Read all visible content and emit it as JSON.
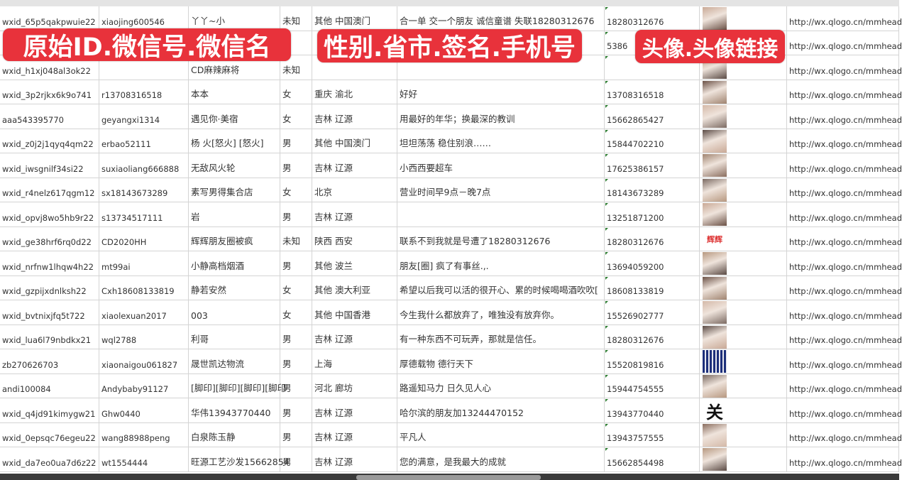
{
  "overlay_labels": [
    "原始ID.微信号.微信名",
    "性别.省市.签名.手机号",
    "头像.头像链接"
  ],
  "colors": {
    "overlay": "#e8323b",
    "grid": "#d4d4d4",
    "comment_marker": "#2e7d32"
  },
  "rows": [
    {
      "id": "wxid_65p5qakpwuie22",
      "wechat": "xiaojing600546",
      "name": "丫丫~小",
      "gender": "未知",
      "region": "其他 中国澳门",
      "signature": "合一单 交一个朋友 诚信童谱 失联18280312676",
      "phone": "18280312676",
      "avatar": "avatar-photo",
      "url": "http://wx.qlogo.cn/mmhead"
    },
    {
      "id": "",
      "wechat": "",
      "name": "",
      "gender": "",
      "region": "",
      "signature": "",
      "phone": "5386",
      "avatar": "avatar-photo",
      "url": "http://wx.qlogo.cn/mmhead"
    },
    {
      "id": "wxid_h1xj048al3ok22",
      "wechat": "",
      "name": "CD麻辣麻将",
      "gender": "未知",
      "region": "",
      "signature": "",
      "phone": "",
      "avatar": "avatar-photo",
      "url": "http://wx.qlogo.cn/mmhead"
    },
    {
      "id": "wxid_3p2rjkx6k9o741",
      "wechat": "r13708316518",
      "name": "本本",
      "gender": "女",
      "region": "重庆 渝北",
      "signature": "好好",
      "phone": "13708316518",
      "avatar": "avatar-photo",
      "url": "http://wx.qlogo.cn/mmhead"
    },
    {
      "id": "aaa543395770",
      "wechat": "geyangxi1314",
      "name": "遇见你·美宿",
      "gender": "女",
      "region": "吉林 辽源",
      "signature": "用最好的年华；换最深的教训",
      "phone": "15662865427",
      "avatar": "avatar-photo",
      "url": "http://wx.qlogo.cn/mmhead"
    },
    {
      "id": "wxid_z0j2j1qyq4qm22",
      "wechat": "erbao52111",
      "name": "杨 火[怒火] [怒火]",
      "gender": "男",
      "region": "其他 中国澳门",
      "signature": "坦坦荡荡 稳住别浪……",
      "phone": "15844702210",
      "avatar": "avatar-photo",
      "url": "http://wx.qlogo.cn/mmhead"
    },
    {
      "id": "wxid_iwsgnilf34si22",
      "wechat": "suxiaoliang666888",
      "name": "无敌风火轮",
      "gender": "男",
      "region": "吉林 辽源",
      "signature": "小西西要超车",
      "phone": "17625386157",
      "avatar": "avatar-photo",
      "url": "http://wx.qlogo.cn/mmhead"
    },
    {
      "id": "wxid_r4nelz617qgm12",
      "wechat": "sx18143673289",
      "name": "素写男得集合店",
      "gender": "女",
      "region": "北京",
      "signature": "营业时间早9点－晚7点",
      "phone": "18143673289",
      "avatar": "avatar-photo",
      "url": "http://wx.qlogo.cn/mmhead"
    },
    {
      "id": "wxid_opvj8wo5hb9r22",
      "wechat": "s13734517111",
      "name": "岩",
      "gender": "男",
      "region": "吉林 辽源",
      "signature": "",
      "phone": "13251871200",
      "avatar": "avatar-photo",
      "url": "http://wx.qlogo.cn/mmhead"
    },
    {
      "id": "wxid_ge38hrf6rq0d22",
      "wechat": "CD2020HH",
      "name": "辉辉朋友圈被疯",
      "gender": "未知",
      "region": "陕西 西安",
      "signature": "联系不到我就是号遭了18280312676",
      "phone": "18280312676",
      "avatar": "avatar-text-辉辉",
      "url": "http://wx.qlogo.cn/mmhead"
    },
    {
      "id": "wxid_nrfnw1lhqw4h22",
      "wechat": "mt99ai",
      "name": "小静高档烟酒",
      "gender": "男",
      "region": "其他 波兰",
      "signature": "朋友[圈] 疯了有事丝.,.",
      "phone": "13694059200",
      "avatar": "avatar-photo",
      "url": "http://wx.qlogo.cn/mmhead"
    },
    {
      "id": "wxid_gzpijxdnlksh22",
      "wechat": "Cxh18608133819",
      "name": "静若安然",
      "gender": "女",
      "region": "其他 澳大利亚",
      "signature": "希望以后我可以活的很开心、累的时候喝喝酒吹吹[",
      "phone": "18608133819",
      "avatar": "avatar-photo",
      "url": "http://wx.qlogo.cn/mmhead"
    },
    {
      "id": "wxid_bvtnixjfq5t722",
      "wechat": "xiaolexuan2017",
      "name": "003",
      "gender": "女",
      "region": "其他 中国香港",
      "signature": "今生我什么都放弃了，唯独没有放弃你。",
      "phone": "15526902777",
      "avatar": "avatar-photo",
      "url": "http://wx.qlogo.cn/mmhead"
    },
    {
      "id": "wxid_lua6l79nbdkx21",
      "wechat": "wql2788",
      "name": "利哥",
      "gender": "男",
      "region": "吉林 辽源",
      "signature": "有一种东西不可玩弄，那就是信任。",
      "phone": "18280312676",
      "avatar": "avatar-photo",
      "url": "http://wx.qlogo.cn/mmhead"
    },
    {
      "id": "zb270626703",
      "wechat": "xiaonaigou061827",
      "name": "晟世凯达物流",
      "gender": "男",
      "region": "上海",
      "signature": "厚德载物 德行天下",
      "phone": "15520819816",
      "avatar": "avatar-qrcode",
      "url": "http://wx.qlogo.cn/mmhead"
    },
    {
      "id": "andi100084",
      "wechat": "Andybaby91127",
      "name": "[脚印][脚印][脚印][脚印",
      "gender": "男",
      "region": "河北 廊坊",
      "signature": "路遥知马力 日久见人心",
      "phone": "15944754555",
      "avatar": "avatar-photo",
      "url": "http://wx.qlogo.cn/mmhead"
    },
    {
      "id": "wxid_q4jd91kimygw21",
      "wechat": "Ghw0440",
      "name": "华伟13943770440",
      "gender": "男",
      "region": "吉林 辽源",
      "signature": "哈尔滨的朋友加13244470152",
      "phone": "13943770440",
      "avatar": "avatar-calligraphy",
      "url": "http://wx.qlogo.cn/mmhead"
    },
    {
      "id": "wxid_0epsqc76egeu22",
      "wechat": "wang88988peng",
      "name": "白泉陈玉静",
      "gender": "男",
      "region": "吉林 辽源",
      "signature": "平凡人",
      "phone": "13943757555",
      "avatar": "avatar-photo",
      "url": "http://wx.qlogo.cn/mmhead"
    },
    {
      "id": "wxid_da7eo0ua7d6z22",
      "wechat": "wt1554444",
      "name": "旺源工艺沙发15662854",
      "gender": "男",
      "region": "吉林 辽源",
      "signature": "您的满意，是我最大的成就",
      "phone": "15662854498",
      "avatar": "avatar-photo",
      "url": "http://wx.qlogo.cn/mmhead"
    }
  ]
}
